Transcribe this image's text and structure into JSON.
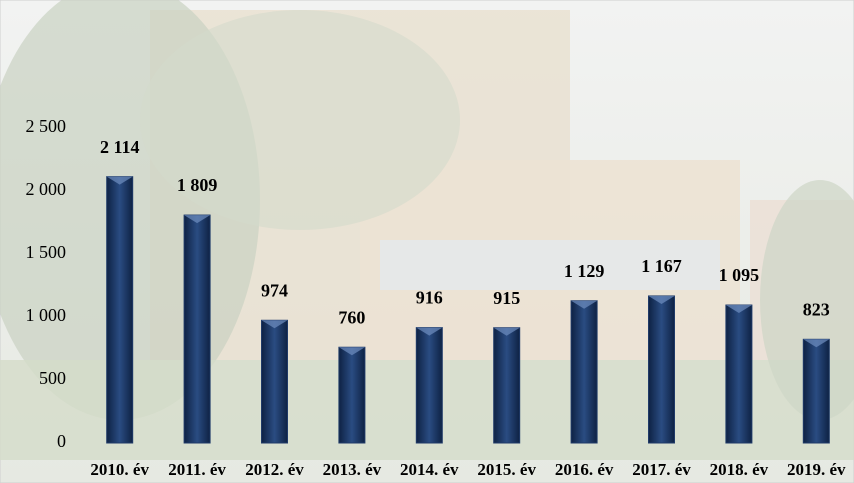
{
  "chart_data": {
    "type": "bar",
    "categories": [
      "2010. év",
      "2011. év",
      "2012. év",
      "2013. év",
      "2014. év",
      "2015. év",
      "2016. év",
      "2017. év",
      "2018. év",
      "2019. év"
    ],
    "values": [
      2114,
      1809,
      974,
      760,
      916,
      915,
      1129,
      1167,
      1095,
      823
    ],
    "value_labels": [
      "2 114",
      "1 809",
      "974",
      "760",
      "916",
      "915",
      "1 129",
      "1 167",
      "1 095",
      "823"
    ],
    "color": "#1f3a68",
    "ylim": [
      0,
      2500
    ],
    "yticks": [
      0,
      500,
      {
        "value": 1000,
        "label": "1 000"
      },
      {
        "value": 1500,
        "label": "1 500"
      },
      {
        "value": 2000,
        "label": "2 000"
      },
      {
        "value": 2500,
        "label": "2 500"
      }
    ],
    "grid": false
  }
}
